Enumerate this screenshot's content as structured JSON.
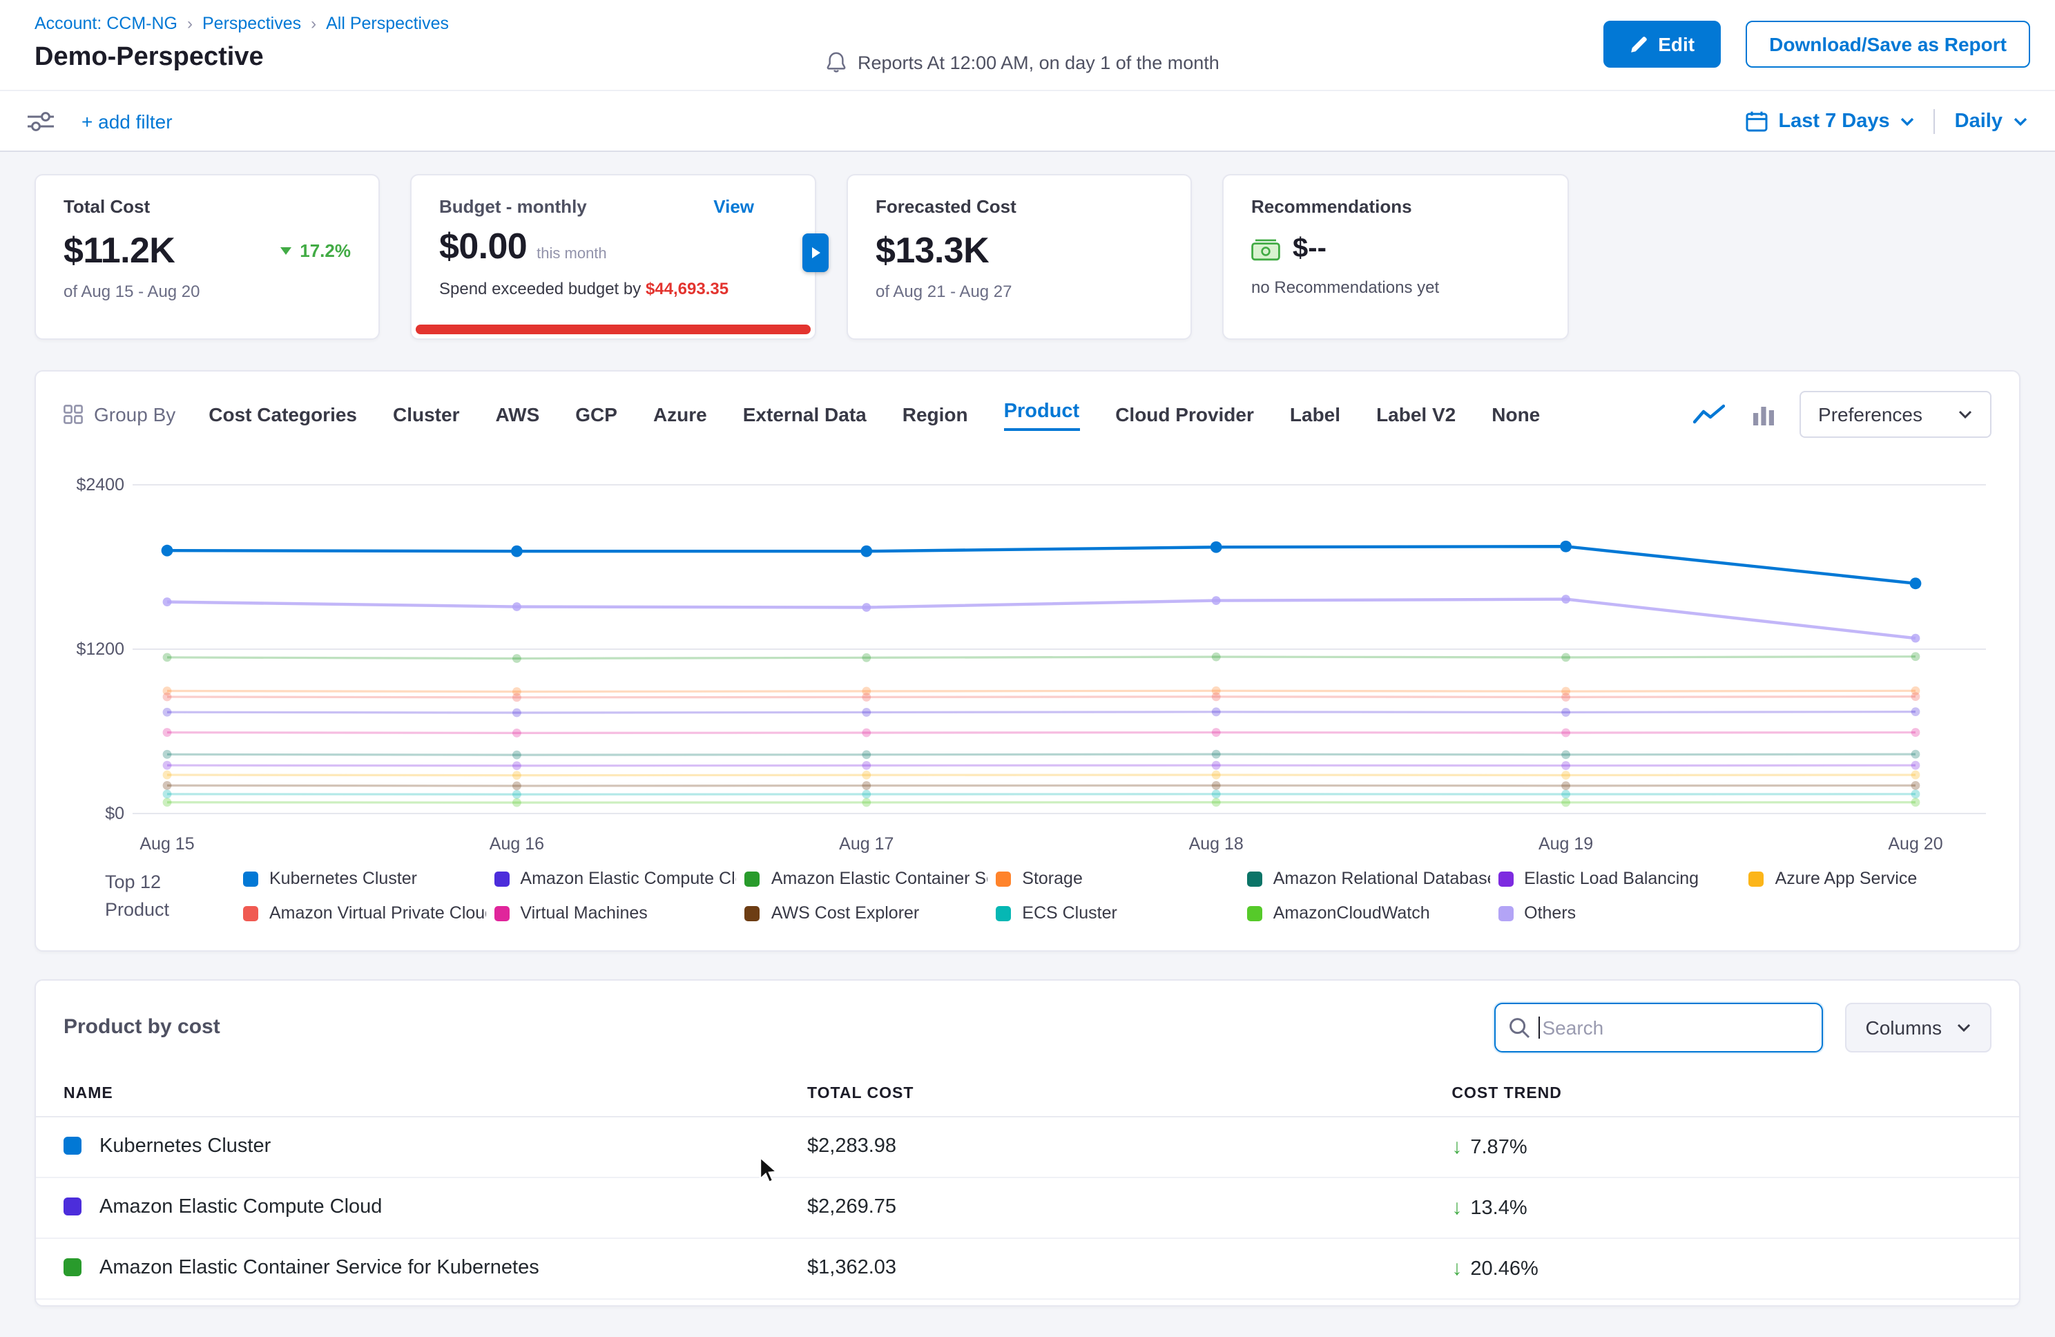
{
  "colors": {
    "accent": "#0278d5",
    "danger": "#e3342f",
    "success": "#42ab45"
  },
  "breadcrumb": {
    "account": "Account: CCM-NG",
    "separator": "›",
    "perspectives": "Perspectives",
    "all_perspectives": "All Perspectives"
  },
  "header": {
    "title": "Demo-Perspective",
    "report_schedule": "Reports At 12:00 AM, on day 1 of the month",
    "edit_button": "Edit",
    "download_button": "Download/Save as Report"
  },
  "filter_bar": {
    "add_filter": "+ add filter",
    "date_range": "Last 7 Days",
    "granularity": "Daily"
  },
  "cards": {
    "total_cost": {
      "label": "Total Cost",
      "value": "$11.2K",
      "trend": "17.2%",
      "trend_direction": "down",
      "period": "of Aug 15 - Aug 20"
    },
    "budget": {
      "label": "Budget - monthly",
      "view_link": "View",
      "value": "$0.00",
      "suffix": "this month",
      "exceeded_prefix": "Spend exceeded budget by ",
      "exceeded_amount": "$44,693.35"
    },
    "forecasted_cost": {
      "label": "Forecasted Cost",
      "value": "$13.3K",
      "period": "of Aug 21 - Aug 27"
    },
    "recommendations": {
      "label": "Recommendations",
      "value": "$--",
      "note": "no Recommendations yet"
    }
  },
  "group_by": {
    "label": "Group By",
    "tabs": [
      "Cost Categories",
      "Cluster",
      "AWS",
      "GCP",
      "Azure",
      "External Data",
      "Region",
      "Product",
      "Cloud Provider",
      "Label",
      "Label V2",
      "None"
    ],
    "active_tab": "Product",
    "preferences_button": "Preferences"
  },
  "chart_data": {
    "type": "line",
    "title": "",
    "xlabel": "",
    "ylabel": "",
    "x": [
      "Aug 15",
      "Aug 16",
      "Aug 17",
      "Aug 18",
      "Aug 19",
      "Aug 20"
    ],
    "ylim": [
      0,
      2400
    ],
    "yticks": [
      0,
      1200,
      2400
    ],
    "ytick_labels": [
      "$0",
      "$1200",
      "$2400"
    ],
    "grid": "horizontal",
    "legend_position": "bottom",
    "series": [
      {
        "name": "Kubernetes Cluster",
        "color": "#0278d5",
        "values": [
          1920,
          1915,
          1915,
          1945,
          1950,
          1680
        ]
      },
      {
        "name": "Others",
        "color": "#b3a4f6",
        "values": [
          1545,
          1510,
          1505,
          1555,
          1565,
          1280
        ]
      },
      {
        "name": "Amazon Elastic Container Service for Kubernetes",
        "color": "#299b2c",
        "values": [
          1140,
          1132,
          1138,
          1144,
          1140,
          1146
        ]
      },
      {
        "name": "Storage",
        "color": "#ff832b",
        "values": [
          895,
          890,
          893,
          896,
          892,
          896
        ]
      },
      {
        "name": "Amazon Virtual Private Cloud",
        "color": "#f05a52",
        "values": [
          852,
          848,
          850,
          853,
          850,
          854
        ]
      },
      {
        "name": "Amazon Elastic Compute Cloud",
        "color": "#4c2ddb",
        "values": [
          740,
          736,
          739,
          742,
          739,
          743
        ]
      },
      {
        "name": "Virtual Machines",
        "color": "#e0259b",
        "values": [
          592,
          588,
          590,
          592,
          590,
          592
        ]
      },
      {
        "name": "Amazon Relational Database Service",
        "color": "#0b7467",
        "values": [
          432,
          428,
          430,
          433,
          430,
          433
        ]
      },
      {
        "name": "Elastic Load Balancing",
        "color": "#7d2be0",
        "values": [
          352,
          349,
          351,
          352,
          350,
          352
        ]
      },
      {
        "name": "Azure App Service",
        "color": "#fcb519",
        "values": [
          282,
          279,
          281,
          282,
          280,
          282
        ]
      },
      {
        "name": "AWS Cost Explorer",
        "color": "#6d3d14",
        "values": [
          205,
          202,
          204,
          205,
          203,
          205
        ]
      },
      {
        "name": "ECS Cluster",
        "color": "#06b7b4",
        "values": [
          142,
          140,
          141,
          142,
          141,
          142
        ]
      },
      {
        "name": "AmazonCloudWatch",
        "color": "#56ca2a",
        "values": [
          82,
          80,
          81,
          82,
          81,
          82
        ]
      }
    ]
  },
  "legend": {
    "title_line1": "Top 12",
    "title_line2": "Product",
    "items": [
      {
        "label": "Kubernetes Cluster",
        "color": "#0278d5"
      },
      {
        "label": "Amazon Elastic Compute Clo...",
        "color": "#4c2ddb"
      },
      {
        "label": "Amazon Elastic Container Se...",
        "color": "#299b2c"
      },
      {
        "label": "Storage",
        "color": "#ff832b"
      },
      {
        "label": "Amazon Relational Database ...",
        "color": "#0b7467"
      },
      {
        "label": "Elastic Load Balancing",
        "color": "#7d2be0"
      },
      {
        "label": "Azure App Service",
        "color": "#fcb519"
      },
      {
        "label": "Amazon Virtual Private Cloud",
        "color": "#f05a52"
      },
      {
        "label": "Virtual Machines",
        "color": "#e0259b"
      },
      {
        "label": "AWS Cost Explorer",
        "color": "#6d3d14"
      },
      {
        "label": "ECS Cluster",
        "color": "#06b7b4"
      },
      {
        "label": "AmazonCloudWatch",
        "color": "#56ca2a"
      },
      {
        "label": "Others",
        "color": "#b3a4f6"
      }
    ]
  },
  "table": {
    "title": "Product by cost",
    "search_placeholder": "Search",
    "columns_button": "Columns",
    "headers": [
      "NAME",
      "TOTAL COST",
      "COST TREND"
    ],
    "rows": [
      {
        "name": "Kubernetes Cluster",
        "color": "#0278d5",
        "total_cost": "$2,283.98",
        "trend": "7.87%",
        "trend_direction": "down"
      },
      {
        "name": "Amazon Elastic Compute Cloud",
        "color": "#4c2ddb",
        "total_cost": "$2,269.75",
        "trend": "13.4%",
        "trend_direction": "down"
      },
      {
        "name": "Amazon Elastic Container Service for Kubernetes",
        "color": "#299b2c",
        "total_cost": "$1,362.03",
        "trend": "20.46%",
        "trend_direction": "down"
      }
    ]
  }
}
